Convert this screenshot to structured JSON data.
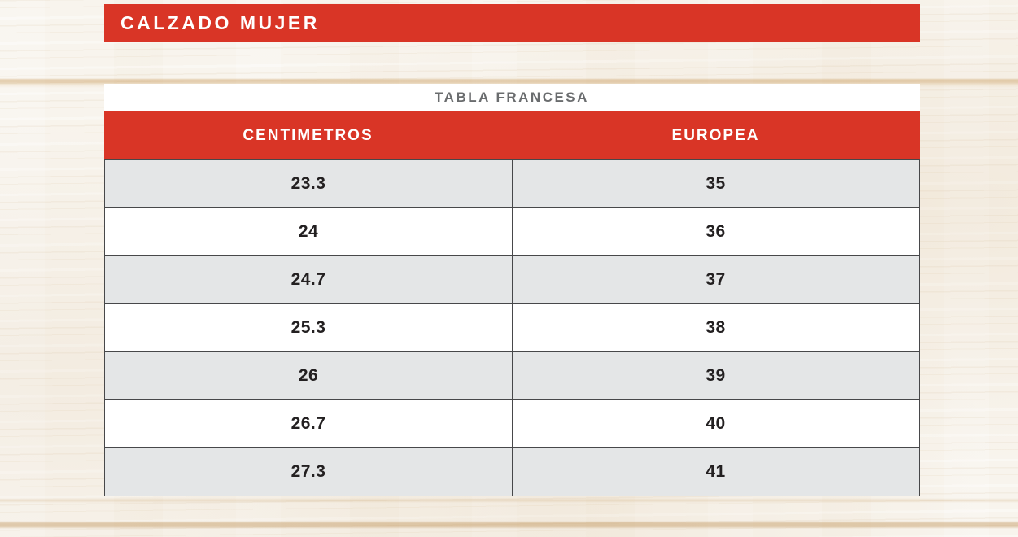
{
  "banner": {
    "title": "CALZADO MUJER"
  },
  "table": {
    "title": "TABLA FRANCESA",
    "columns": [
      "CENTIMETROS",
      "EUROPEA"
    ],
    "rows": [
      {
        "cm": "23.3",
        "eu": "35"
      },
      {
        "cm": "24",
        "eu": "36"
      },
      {
        "cm": "24.7",
        "eu": "37"
      },
      {
        "cm": "25.3",
        "eu": "38"
      },
      {
        "cm": "26",
        "eu": "39"
      },
      {
        "cm": "26.7",
        "eu": "40"
      },
      {
        "cm": "27.3",
        "eu": "41"
      }
    ]
  },
  "colors": {
    "accent_red": "#d93526",
    "banner_text": "#ffffff",
    "table_title_text": "#6a6c6e",
    "row_alt_bg": "#e4e6e7",
    "row_bg": "#ffffff",
    "border": "#47484a",
    "cell_text": "#232021",
    "background_wood": "#f8f4ed"
  }
}
